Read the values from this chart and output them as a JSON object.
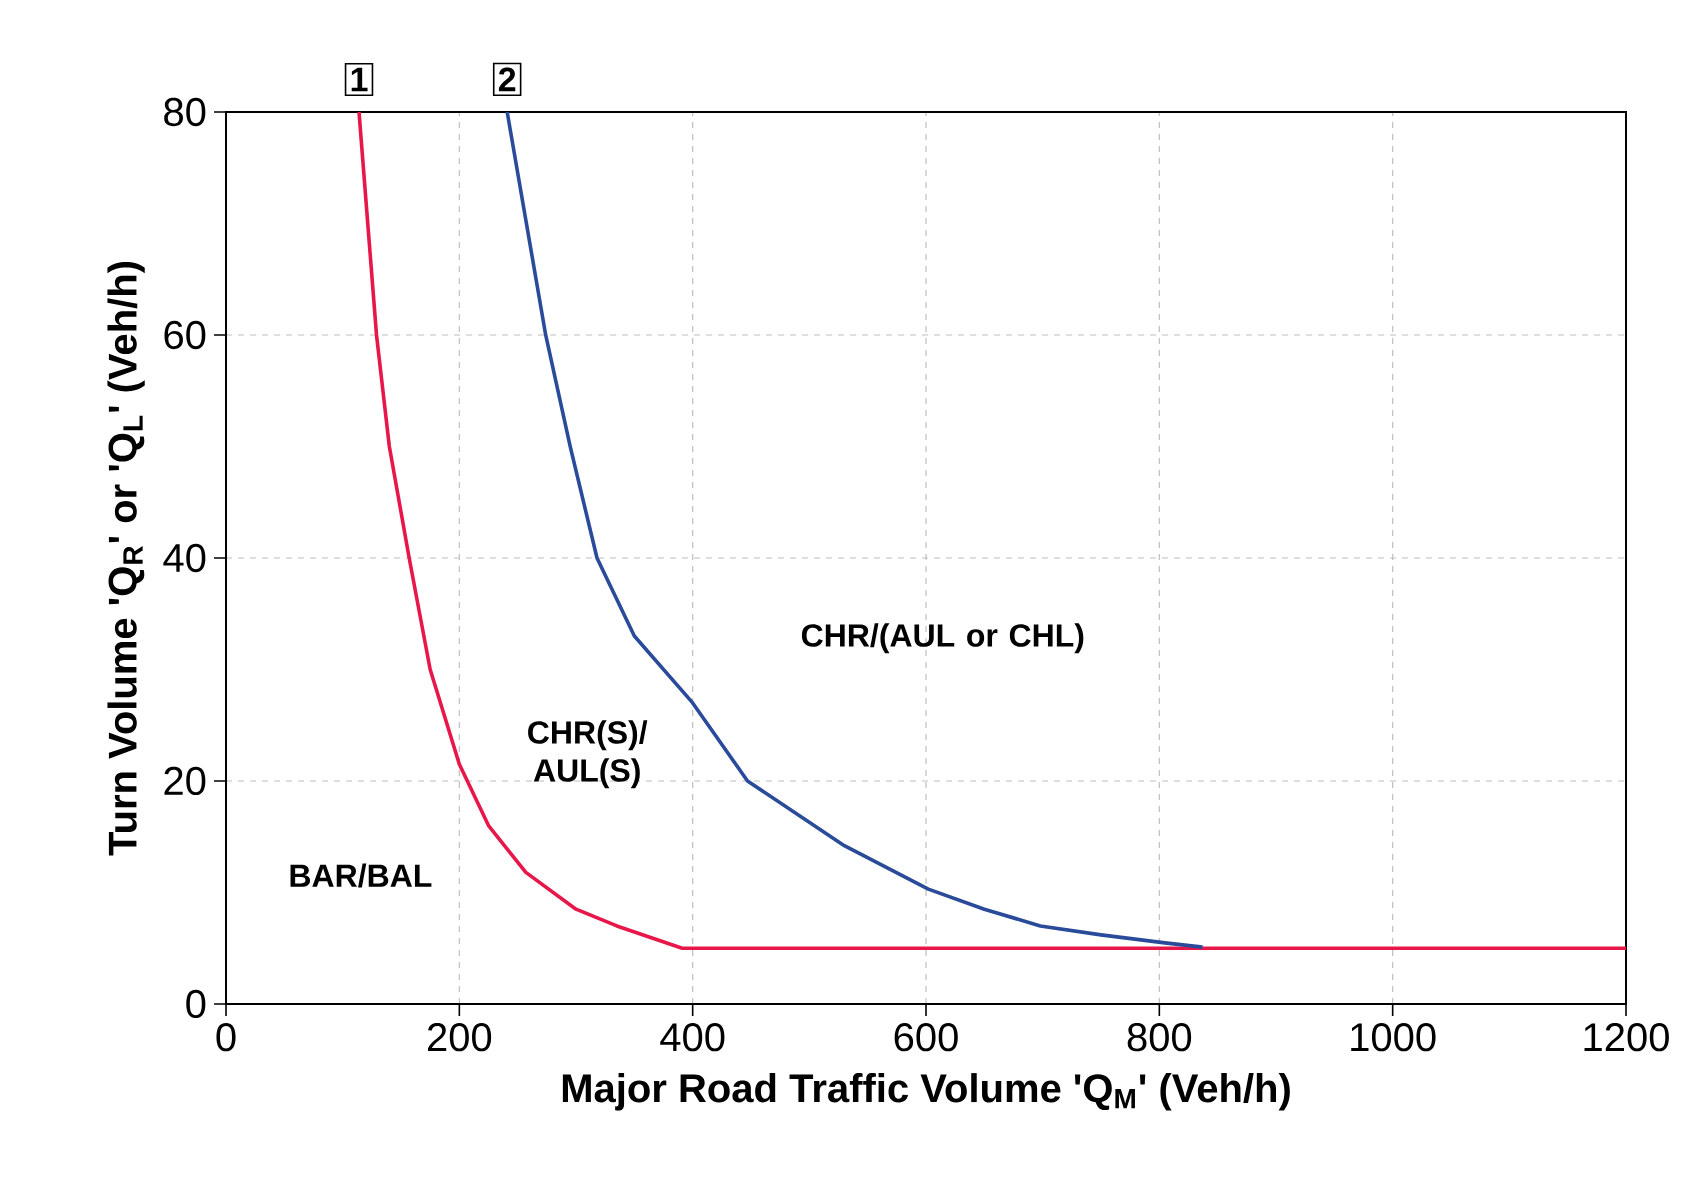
{
  "chart_data": {
    "type": "line",
    "xlabel": "Major Road Traffic Volume 'Q$_{M}$' (Veh/h)",
    "ylabel": "Turn Volume 'Q$_{R}$' or 'Q$_{L}$' (Veh/h)",
    "xlim": [
      0,
      1200
    ],
    "ylim": [
      0,
      80
    ],
    "xticks": [
      0,
      200,
      400,
      600,
      800,
      1000,
      1200
    ],
    "yticks": [
      0,
      20,
      40,
      60,
      80
    ],
    "grid": true,
    "marker": "none",
    "line_style": "solid",
    "series": [
      {
        "color": "#e8174a",
        "x": [
          114,
          129,
          140,
          157,
          175,
          200,
          225,
          257,
          300,
          335,
          391,
          600,
          800,
          1000,
          1200
        ],
        "values": [
          80,
          60,
          50,
          40,
          30,
          21.5,
          16,
          11.8,
          8.5,
          7,
          5,
          5,
          5,
          5,
          5
        ]
      },
      {
        "color": "#2a4a9a",
        "x": [
          241,
          274,
          295,
          318,
          350,
          400,
          447,
          530,
          602,
          650,
          698,
          750,
          803,
          837
        ],
        "values": [
          80,
          60,
          50,
          40,
          33,
          27,
          20,
          14.2,
          10.3,
          8.5,
          7,
          6.2,
          5.5,
          5.1
        ]
      }
    ],
    "annotations": [
      {
        "text": "1",
        "x": 114,
        "y": 80
      },
      {
        "text": "2",
        "x": 241,
        "y": 80
      },
      "BAR/BAL",
      "CHR(S)/ AUL(S)",
      "CHR/(AUL or CHL)"
    ]
  }
}
